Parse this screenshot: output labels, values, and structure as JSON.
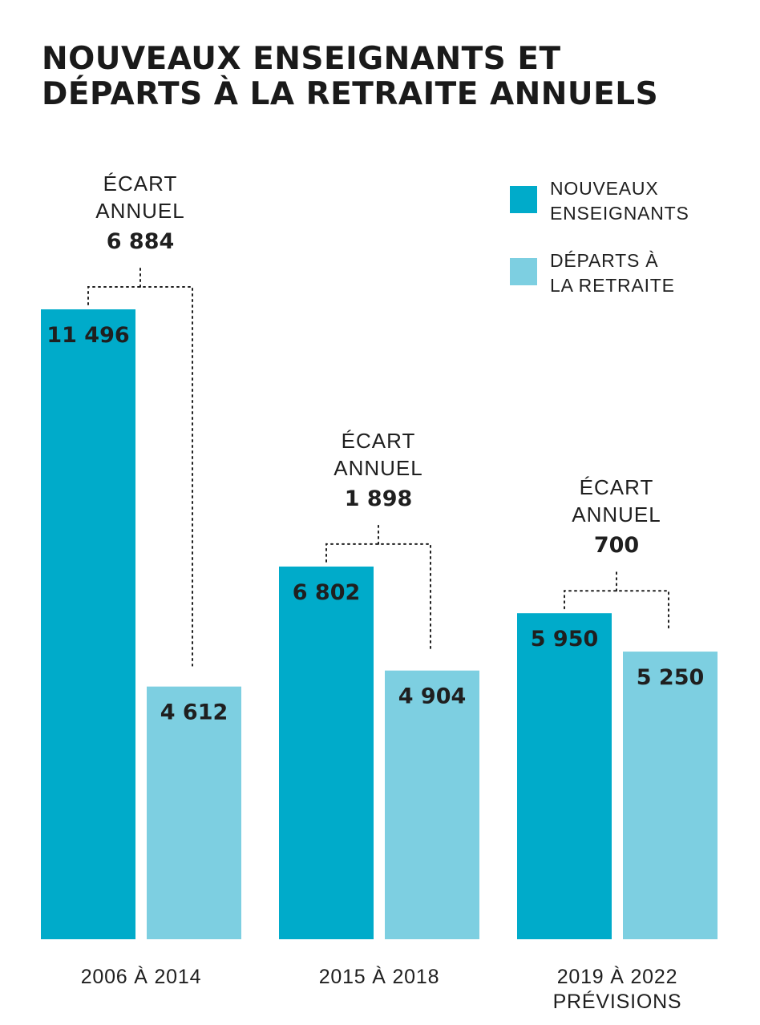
{
  "title_lines": [
    "NOUVEAUX ENSEIGNANTS ET",
    "DÉPARTS À LA RETRAITE ANNUELS"
  ],
  "legend": [
    {
      "lines": [
        "NOUVEAUX",
        "ENSEIGNANTS"
      ],
      "color": "#00abca"
    },
    {
      "lines": [
        "DÉPARTS À",
        "LA RETRAITE"
      ],
      "color": "#7dcfe1"
    }
  ],
  "chart_data": {
    "type": "bar",
    "title": "NOUVEAUX ENSEIGNANTS ET DÉPARTS À LA RETRAITE ANNUELS",
    "categories": [
      {
        "lines": [
          "2006 À 2014"
        ]
      },
      {
        "lines": [
          "2015 À 2018"
        ]
      },
      {
        "lines": [
          "2019 À 2022",
          "PRÉVISIONS"
        ]
      }
    ],
    "series": [
      {
        "name": "NOUVEAUX ENSEIGNANTS",
        "color": "#00abca",
        "values": [
          11496,
          6802,
          5950
        ],
        "labels": [
          "11 496",
          "6 802",
          "5 950"
        ]
      },
      {
        "name": "DÉPARTS À LA RETRAITE",
        "color": "#7dcfe1",
        "values": [
          4612,
          4904,
          5250
        ],
        "labels": [
          "4 612",
          "4 904",
          "5 250"
        ]
      }
    ],
    "annotations": [
      {
        "lines": [
          "ÉCART",
          "ANNUEL"
        ],
        "value": "6 884"
      },
      {
        "lines": [
          "ÉCART",
          "ANNUEL"
        ],
        "value": "1 898"
      },
      {
        "lines": [
          "ÉCART",
          "ANNUEL"
        ],
        "value": "700"
      }
    ],
    "ylim": [
      0,
      11496
    ],
    "grid": false,
    "legend_position": "top-right"
  }
}
